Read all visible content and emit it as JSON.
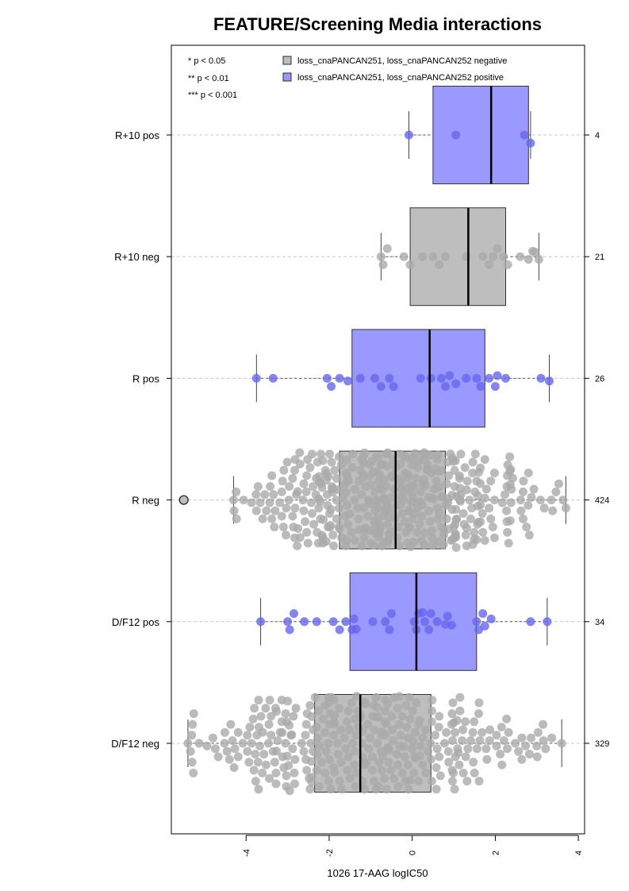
{
  "chart_data": {
    "type": "boxplot",
    "orientation": "horizontal",
    "title": "FEATURE/Screening Media interactions",
    "xlabel": "1026 17-AAG logIC50",
    "xlim": [
      -5.8,
      4.15
    ],
    "xticks": [
      -4,
      -2,
      0,
      2,
      4
    ],
    "xtick_labels": [
      "-4",
      "-2",
      "0",
      "2",
      "4"
    ],
    "significance_legend": [
      "* p < 0.05",
      "** p < 0.01",
      "*** p < 0.001"
    ],
    "legend": [
      {
        "label": "loss_cnaPANCAN251, loss_cnaPANCAN252 negative",
        "color": "#bebebe"
      },
      {
        "label": "loss_cnaPANCAN251, loss_cnaPANCAN252 positive",
        "color": "#9999ff"
      }
    ],
    "groups": [
      {
        "label": "R+10 pos",
        "n": "4",
        "color": "#9999ff",
        "point_color": "#6666ee",
        "whisker_low": -0.08,
        "q1": 0.5,
        "median": 1.9,
        "q3": 2.8,
        "whisker_high": 2.85,
        "points": [
          -0.08,
          1.05,
          2.7,
          2.85
        ]
      },
      {
        "label": "R+10 neg",
        "n": "21",
        "color": "#bebebe",
        "point_color": "#aaaaaa",
        "whisker_low": -0.75,
        "q1": -0.05,
        "median": 1.35,
        "q3": 2.25,
        "whisker_high": 3.05,
        "points": [
          -0.75,
          -0.7,
          -0.6,
          -0.2,
          -0.05,
          0.25,
          0.5,
          0.65,
          0.8,
          1.3,
          1.7,
          1.85,
          1.95,
          2.05,
          2.2,
          2.3,
          2.6,
          2.8,
          2.9,
          2.95,
          3.05
        ]
      },
      {
        "label": "R pos",
        "n": "26",
        "color": "#9999ff",
        "point_color": "#6666ee",
        "whisker_low": -3.75,
        "q1": -1.45,
        "median": 0.42,
        "q3": 1.75,
        "whisker_high": 3.3,
        "points": [
          -3.75,
          -3.35,
          -2.05,
          -1.95,
          -1.75,
          -1.55,
          -1.25,
          -0.9,
          -0.75,
          -0.55,
          -0.45,
          0.2,
          0.45,
          0.7,
          0.8,
          0.9,
          1.05,
          1.3,
          1.55,
          1.65,
          1.85,
          2.0,
          2.05,
          2.25,
          3.1,
          3.3
        ]
      },
      {
        "label": "R neg",
        "n": "424",
        "color": "#bebebe",
        "point_color": "#aaaaaa",
        "outlier_color": "#bebebe",
        "whisker_low": -4.3,
        "q1": -1.75,
        "median": -0.4,
        "q3": 0.8,
        "whisker_high": 3.7,
        "outliers": [
          -5.5
        ],
        "points": []
      },
      {
        "label": "D/F12 pos",
        "n": "34",
        "color": "#9999ff",
        "point_color": "#6666ee",
        "whisker_low": -3.65,
        "q1": -1.5,
        "median": 0.1,
        "q3": 1.55,
        "whisker_high": 3.25,
        "points": [
          -3.65,
          -3.0,
          -2.95,
          -2.85,
          -2.6,
          -2.3,
          -1.9,
          -1.75,
          -1.6,
          -1.45,
          -1.4,
          -1.35,
          -0.95,
          -0.65,
          -0.55,
          -0.5,
          0.05,
          0.1,
          0.15,
          0.25,
          0.3,
          0.4,
          0.45,
          0.6,
          0.8,
          0.85,
          0.95,
          1.55,
          1.6,
          1.7,
          1.75,
          1.9,
          2.85,
          3.25
        ]
      },
      {
        "label": "D/F12 neg",
        "n": "329",
        "color": "#bebebe",
        "point_color": "#aaaaaa",
        "whisker_low": -5.4,
        "q1": -2.35,
        "median": -1.25,
        "q3": 0.45,
        "whisker_high": 3.6,
        "points": []
      }
    ]
  }
}
